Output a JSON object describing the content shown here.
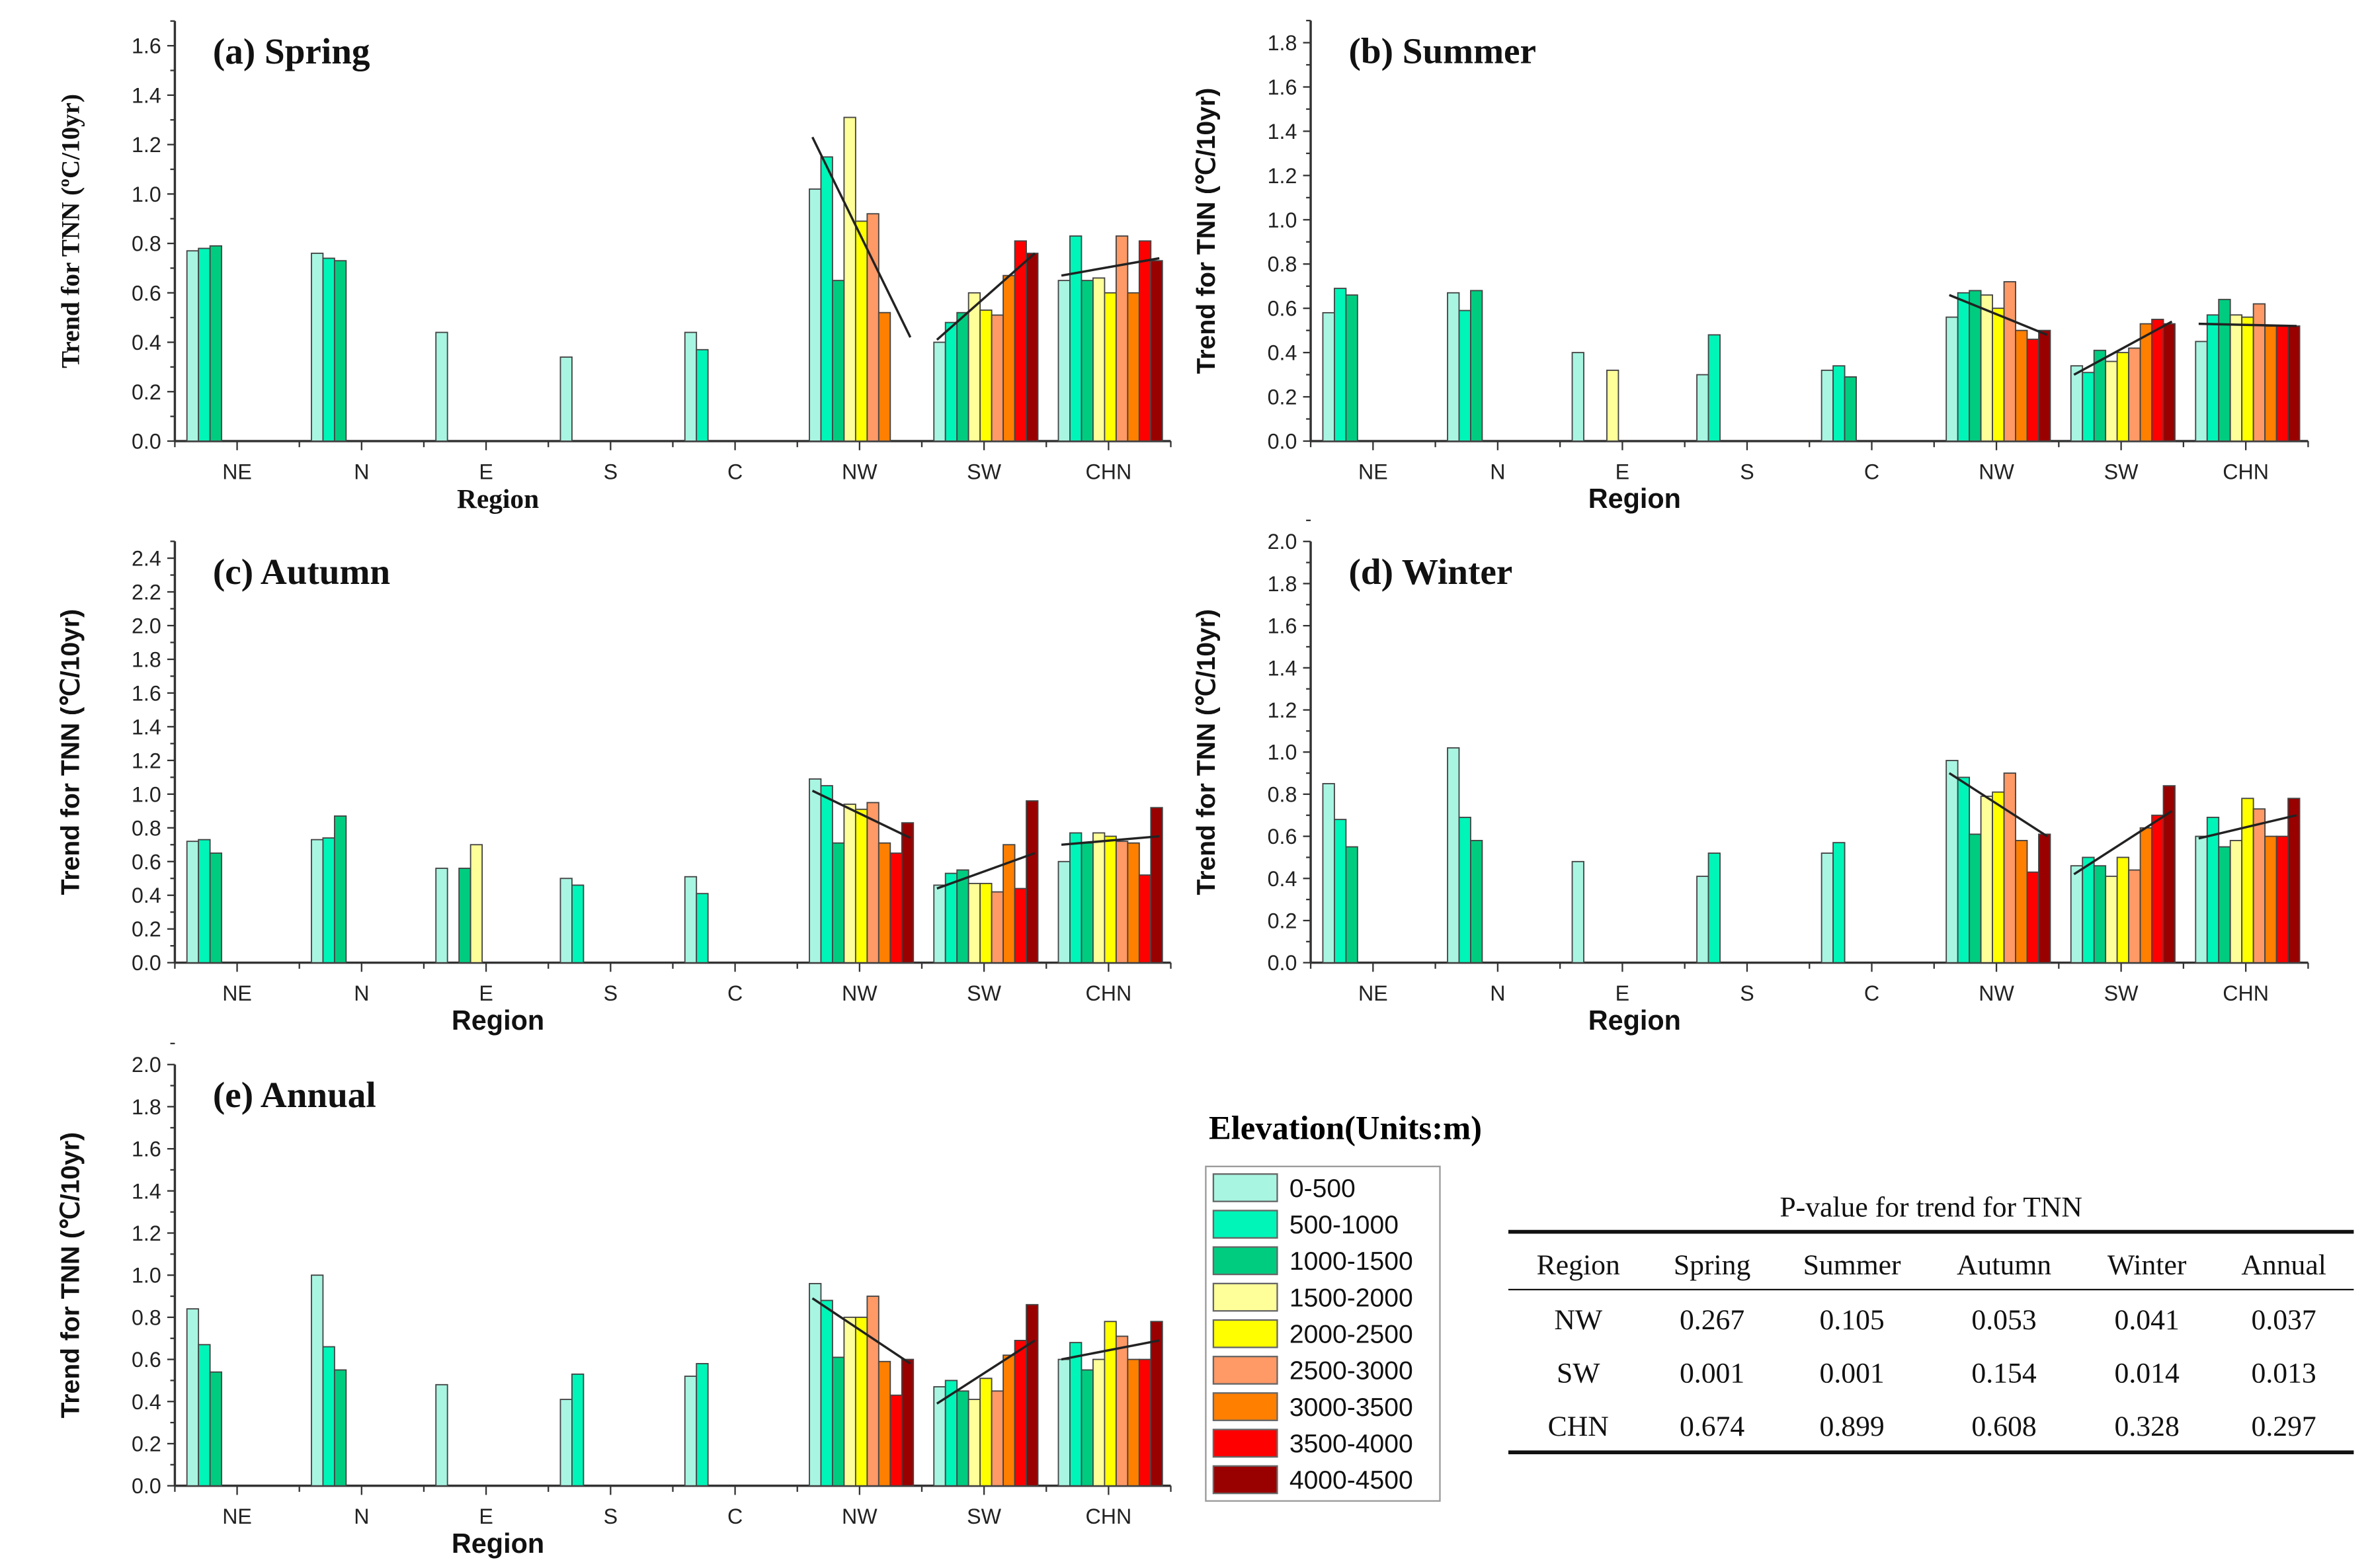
{
  "chart_data": [
    {
      "type": "bar",
      "title": "(a) Spring",
      "xlabel": "Region",
      "ylabel": "Trend for TNN (ºC/10yr)",
      "ylim": [
        0,
        1.7
      ],
      "ytick_max": 1.6,
      "ystep": 0.2,
      "categories": [
        "NE",
        "N",
        "E",
        "S",
        "C",
        "NW",
        "SW",
        "CHN"
      ],
      "values": {
        "NE": [
          0.77,
          0.78,
          0.79,
          null,
          null,
          null,
          null,
          null,
          null
        ],
        "N": [
          0.76,
          0.74,
          0.73,
          null,
          null,
          null,
          null,
          null,
          null
        ],
        "E": [
          0.44,
          null,
          null,
          null,
          null,
          null,
          null,
          null,
          null
        ],
        "S": [
          0.34,
          null,
          null,
          null,
          null,
          null,
          null,
          null,
          null
        ],
        "C": [
          0.44,
          0.37,
          null,
          null,
          null,
          null,
          null,
          null,
          null
        ],
        "NW": [
          1.02,
          1.15,
          0.65,
          1.31,
          0.89,
          0.92,
          0.52,
          null,
          null
        ],
        "SW": [
          0.4,
          0.48,
          0.52,
          0.6,
          0.53,
          0.51,
          0.67,
          0.81,
          0.76
        ],
        "CHN": [
          0.65,
          0.83,
          0.65,
          0.66,
          0.6,
          0.83,
          0.6,
          0.81,
          0.73
        ]
      },
      "trendlines": {
        "NW": [
          1.23,
          0.42
        ],
        "SW": [
          0.41,
          0.76
        ],
        "CHN": [
          0.67,
          0.74
        ]
      }
    },
    {
      "type": "bar",
      "title": "(b) Summer",
      "xlabel": "Region",
      "ylabel": "Trend for TNN (℃/10yr)",
      "ylim": [
        0,
        1.9
      ],
      "ytick_max": 1.8,
      "ystep": 0.2,
      "categories": [
        "NE",
        "N",
        "E",
        "S",
        "C",
        "NW",
        "SW",
        "CHN"
      ],
      "values": {
        "NE": [
          0.58,
          0.69,
          0.66,
          null,
          null,
          null,
          null,
          null,
          null
        ],
        "N": [
          0.67,
          0.59,
          0.68,
          null,
          null,
          null,
          null,
          null,
          null
        ],
        "E": [
          0.4,
          null,
          null,
          0.32,
          null,
          null,
          null,
          null,
          null
        ],
        "S": [
          0.3,
          0.48,
          null,
          null,
          null,
          null,
          null,
          null,
          null
        ],
        "C": [
          0.32,
          0.34,
          0.29,
          null,
          null,
          null,
          null,
          null,
          null
        ],
        "NW": [
          0.56,
          0.67,
          0.68,
          0.66,
          0.6,
          0.72,
          0.5,
          0.46,
          0.5
        ],
        "SW": [
          0.34,
          0.31,
          0.41,
          0.36,
          0.4,
          0.42,
          0.53,
          0.55,
          0.53
        ],
        "CHN": [
          0.45,
          0.57,
          0.64,
          0.57,
          0.56,
          0.62,
          0.52,
          0.52,
          0.52
        ]
      },
      "trendlines": {
        "NW": [
          0.66,
          0.48
        ],
        "SW": [
          0.3,
          0.54
        ],
        "CHN": [
          0.53,
          0.52
        ]
      }
    },
    {
      "type": "bar",
      "title": "(c) Autumn",
      "xlabel": "Region",
      "ylabel": "Trend for TNN (℃/10yr)",
      "ylim": [
        0,
        2.5
      ],
      "ytick_max": 2.4,
      "ystep": 0.2,
      "categories": [
        "NE",
        "N",
        "E",
        "S",
        "C",
        "NW",
        "SW",
        "CHN"
      ],
      "values": {
        "NE": [
          0.72,
          0.73,
          0.65,
          null,
          null,
          null,
          null,
          null,
          null
        ],
        "N": [
          0.73,
          0.74,
          0.87,
          null,
          null,
          null,
          null,
          null,
          null
        ],
        "E": [
          0.56,
          null,
          0.56,
          0.7,
          null,
          null,
          null,
          null,
          null
        ],
        "S": [
          0.5,
          0.46,
          null,
          null,
          null,
          null,
          null,
          null,
          null
        ],
        "C": [
          0.51,
          0.41,
          null,
          null,
          null,
          null,
          null,
          null,
          null
        ],
        "NW": [
          1.09,
          1.05,
          0.71,
          0.94,
          0.91,
          0.95,
          0.71,
          0.65,
          0.83
        ],
        "SW": [
          0.46,
          0.53,
          0.55,
          0.47,
          0.47,
          0.42,
          0.7,
          0.44,
          0.96
        ],
        "CHN": [
          0.6,
          0.77,
          0.71,
          0.77,
          0.75,
          0.72,
          0.71,
          0.52,
          0.92
        ]
      },
      "trendlines": {
        "NW": [
          1.02,
          0.74
        ],
        "SW": [
          0.44,
          0.65
        ],
        "CHN": [
          0.7,
          0.75
        ]
      }
    },
    {
      "type": "bar",
      "title": "(d) Winter",
      "xlabel": "Region",
      "ylabel": "Trend for TNN (℃/10yr)",
      "ylim": [
        0,
        2.0
      ],
      "ytick_max": 2.0,
      "ystep": 0.2,
      "categories": [
        "NE",
        "N",
        "E",
        "S",
        "C",
        "NW",
        "SW",
        "CHN"
      ],
      "values": {
        "NE": [
          0.85,
          0.68,
          0.55,
          null,
          null,
          null,
          null,
          null,
          null
        ],
        "N": [
          1.02,
          0.69,
          0.58,
          null,
          null,
          null,
          null,
          null,
          null
        ],
        "E": [
          0.48,
          null,
          null,
          null,
          null,
          null,
          null,
          null,
          null
        ],
        "S": [
          0.41,
          0.52,
          null,
          null,
          null,
          null,
          null,
          null,
          null
        ],
        "C": [
          0.52,
          0.57,
          null,
          null,
          null,
          null,
          null,
          null,
          null
        ],
        "NW": [
          0.96,
          0.88,
          0.61,
          0.79,
          0.81,
          0.9,
          0.58,
          0.43,
          0.61
        ],
        "SW": [
          0.46,
          0.5,
          0.46,
          0.41,
          0.5,
          0.44,
          0.64,
          0.7,
          0.84
        ],
        "CHN": [
          0.6,
          0.69,
          0.55,
          0.58,
          0.78,
          0.73,
          0.6,
          0.6,
          0.78
        ]
      },
      "trendlines": {
        "NW": [
          0.9,
          0.6
        ],
        "SW": [
          0.42,
          0.72
        ],
        "CHN": [
          0.59,
          0.7
        ]
      }
    },
    {
      "type": "bar",
      "title": "(e) Annual",
      "xlabel": "Region",
      "ylabel": "Trend for TNN (℃/10yr)",
      "ylim": [
        0,
        2.0
      ],
      "ytick_max": 2.0,
      "ystep": 0.2,
      "categories": [
        "NE",
        "N",
        "E",
        "S",
        "C",
        "NW",
        "SW",
        "CHN"
      ],
      "values": {
        "NE": [
          0.84,
          0.67,
          0.54,
          null,
          null,
          null,
          null,
          null,
          null
        ],
        "N": [
          1.0,
          0.66,
          0.55,
          null,
          null,
          null,
          null,
          null,
          null
        ],
        "E": [
          0.48,
          null,
          null,
          null,
          null,
          null,
          null,
          null,
          null
        ],
        "S": [
          0.41,
          0.53,
          null,
          null,
          null,
          null,
          null,
          null,
          null
        ],
        "C": [
          0.52,
          0.58,
          null,
          null,
          null,
          null,
          null,
          null,
          null
        ],
        "NW": [
          0.96,
          0.88,
          0.61,
          0.8,
          0.8,
          0.9,
          0.59,
          0.43,
          0.6
        ],
        "SW": [
          0.47,
          0.5,
          0.45,
          0.41,
          0.51,
          0.45,
          0.62,
          0.69,
          0.86
        ],
        "CHN": [
          0.6,
          0.68,
          0.55,
          0.6,
          0.78,
          0.71,
          0.6,
          0.6,
          0.78
        ]
      },
      "trendlines": {
        "NW": [
          0.89,
          0.58
        ],
        "SW": [
          0.39,
          0.69
        ],
        "CHN": [
          0.6,
          0.69
        ]
      }
    }
  ],
  "legend": {
    "title": "Elevation(Units:m)",
    "items": [
      {
        "label": "0-500",
        "color": "#a8f5e2"
      },
      {
        "label": "500-1000",
        "color": "#00f5b8"
      },
      {
        "label": "1000-1500",
        "color": "#00cc80"
      },
      {
        "label": "1500-2000",
        "color": "#ffff99"
      },
      {
        "label": "2000-2500",
        "color": "#ffff00"
      },
      {
        "label": "2500-3000",
        "color": "#ff9966"
      },
      {
        "label": "3000-3500",
        "color": "#ff7f00"
      },
      {
        "label": "3500-4000",
        "color": "#ff0000"
      },
      {
        "label": "4000-4500",
        "color": "#990000"
      }
    ]
  },
  "pvalue_table": {
    "title": "P-value for trend for TNN",
    "headers": [
      "Region",
      "Spring",
      "Summer",
      "Autumn",
      "Winter",
      "Annual"
    ],
    "rows": [
      [
        "NW",
        "0.267",
        "0.105",
        "0.053",
        "0.041",
        "0.037"
      ],
      [
        "SW",
        "0.001",
        "0.001",
        "0.154",
        "0.014",
        "0.013"
      ],
      [
        "CHN",
        "0.674",
        "0.899",
        "0.608",
        "0.328",
        "0.297"
      ]
    ]
  }
}
